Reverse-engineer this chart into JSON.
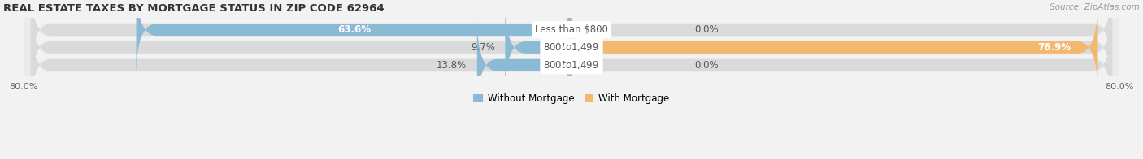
{
  "title": "REAL ESTATE TAXES BY MORTGAGE STATUS IN ZIP CODE 62964",
  "source": "Source: ZipAtlas.com",
  "categories": [
    "Less than $800",
    "$800 to $1,499",
    "$800 to $1,499"
  ],
  "without_mortgage": [
    63.6,
    9.7,
    13.8
  ],
  "with_mortgage": [
    0.0,
    76.9,
    0.0
  ],
  "color_without": "#8bbad4",
  "color_with": "#f2b96e",
  "xlim_left": -80,
  "xlim_right": 80,
  "bar_height": 0.68,
  "background_color": "#f2f2f2",
  "bar_bg_color": "#e0e0e0",
  "row_bg_color": "#ebebeb",
  "figsize": [
    14.06,
    1.96
  ],
  "dpi": 100,
  "label_fontsize": 8.5,
  "title_fontsize": 9.5,
  "source_fontsize": 7.5,
  "legend_fontsize": 8.5,
  "tick_fontsize": 8.0
}
